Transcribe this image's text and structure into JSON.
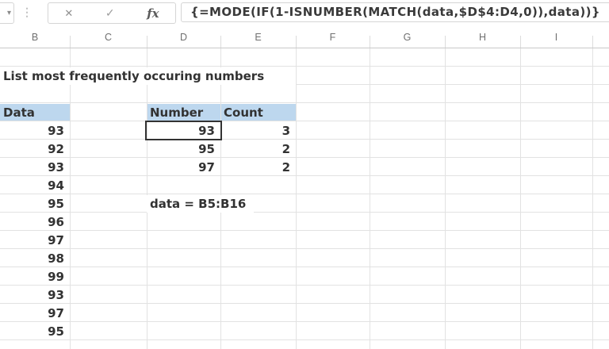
{
  "formula_bar": {
    "name_box_arrow": "▾",
    "separator_dots": "⋮",
    "cancel_label": "✕",
    "enter_label": "✓",
    "fx_label": "fx",
    "formula": "{=MODE(IF(1-ISNUMBER(MATCH(data,$D$4:D4,0)),data))}"
  },
  "column_headers": [
    "B",
    "C",
    "D",
    "E",
    "F",
    "G",
    "H",
    "I"
  ],
  "sheet": {
    "title": "List most frequently occuring numbers",
    "data_table": {
      "header": "Data",
      "values": [
        "93",
        "92",
        "93",
        "94",
        "95",
        "96",
        "97",
        "98",
        "99",
        "93",
        "97",
        "95"
      ]
    },
    "results_table": {
      "headers": [
        "Number",
        "Count"
      ],
      "rows": [
        [
          "93",
          "3"
        ],
        [
          "95",
          "2"
        ],
        [
          "97",
          "2"
        ]
      ]
    },
    "note": "data = B5:B16",
    "selected_cell": "D5",
    "selected_value": "93"
  },
  "colors": {
    "header_fill": "#BDD7EE",
    "grid_line": "#E2E2E2",
    "cell_text": "#323232",
    "selection_border": "#333333"
  }
}
